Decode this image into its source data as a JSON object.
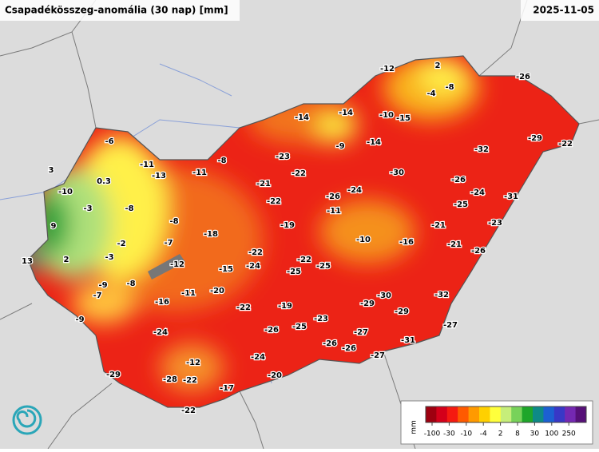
{
  "header": {
    "title": "Csapadékösszeg-anomália (30 nap) [mm]",
    "date": "2025-11-05"
  },
  "stations": [
    -12,
    2,
    -8,
    -4,
    -26,
    -14,
    -14,
    -10,
    -15,
    -29,
    -22,
    -6,
    -9,
    -14,
    -32,
    -23,
    -11,
    -8,
    -30,
    3,
    -13,
    -11,
    -22,
    -26,
    0.3,
    -21,
    -24,
    -24,
    -10,
    -26,
    -31,
    -22,
    -25,
    -3,
    -8,
    -11,
    9,
    -8,
    -19,
    -21,
    -23,
    -18,
    -10,
    -16,
    -2,
    -7,
    -21,
    -26,
    -22,
    -22,
    13,
    2,
    -3,
    -12,
    -24,
    -25,
    -15,
    -25,
    -9,
    -8,
    -7,
    -11,
    -20,
    -30,
    -32,
    -29,
    -16,
    -22,
    -19,
    -9,
    -29,
    -23,
    -24,
    -26,
    -25,
    -27,
    -27,
    -26,
    -31,
    -26,
    -24,
    -27,
    -12,
    -29,
    -20,
    -28,
    -22,
    -17,
    -22
  ],
  "legend": {
    "unit": "mm",
    "ticks": [
      -100,
      -30,
      -10,
      -4,
      2,
      8,
      30,
      100,
      250
    ],
    "colors": [
      "#9e0010",
      "#d4001a",
      "#f51a10",
      "#ff5a00",
      "#ff9a00",
      "#ffd000",
      "#ffff3c",
      "#c6ee7a",
      "#78d25a",
      "#1ea62a",
      "#0e8a86",
      "#1c60d2",
      "#3838c6",
      "#7428b2",
      "#561078"
    ]
  }
}
